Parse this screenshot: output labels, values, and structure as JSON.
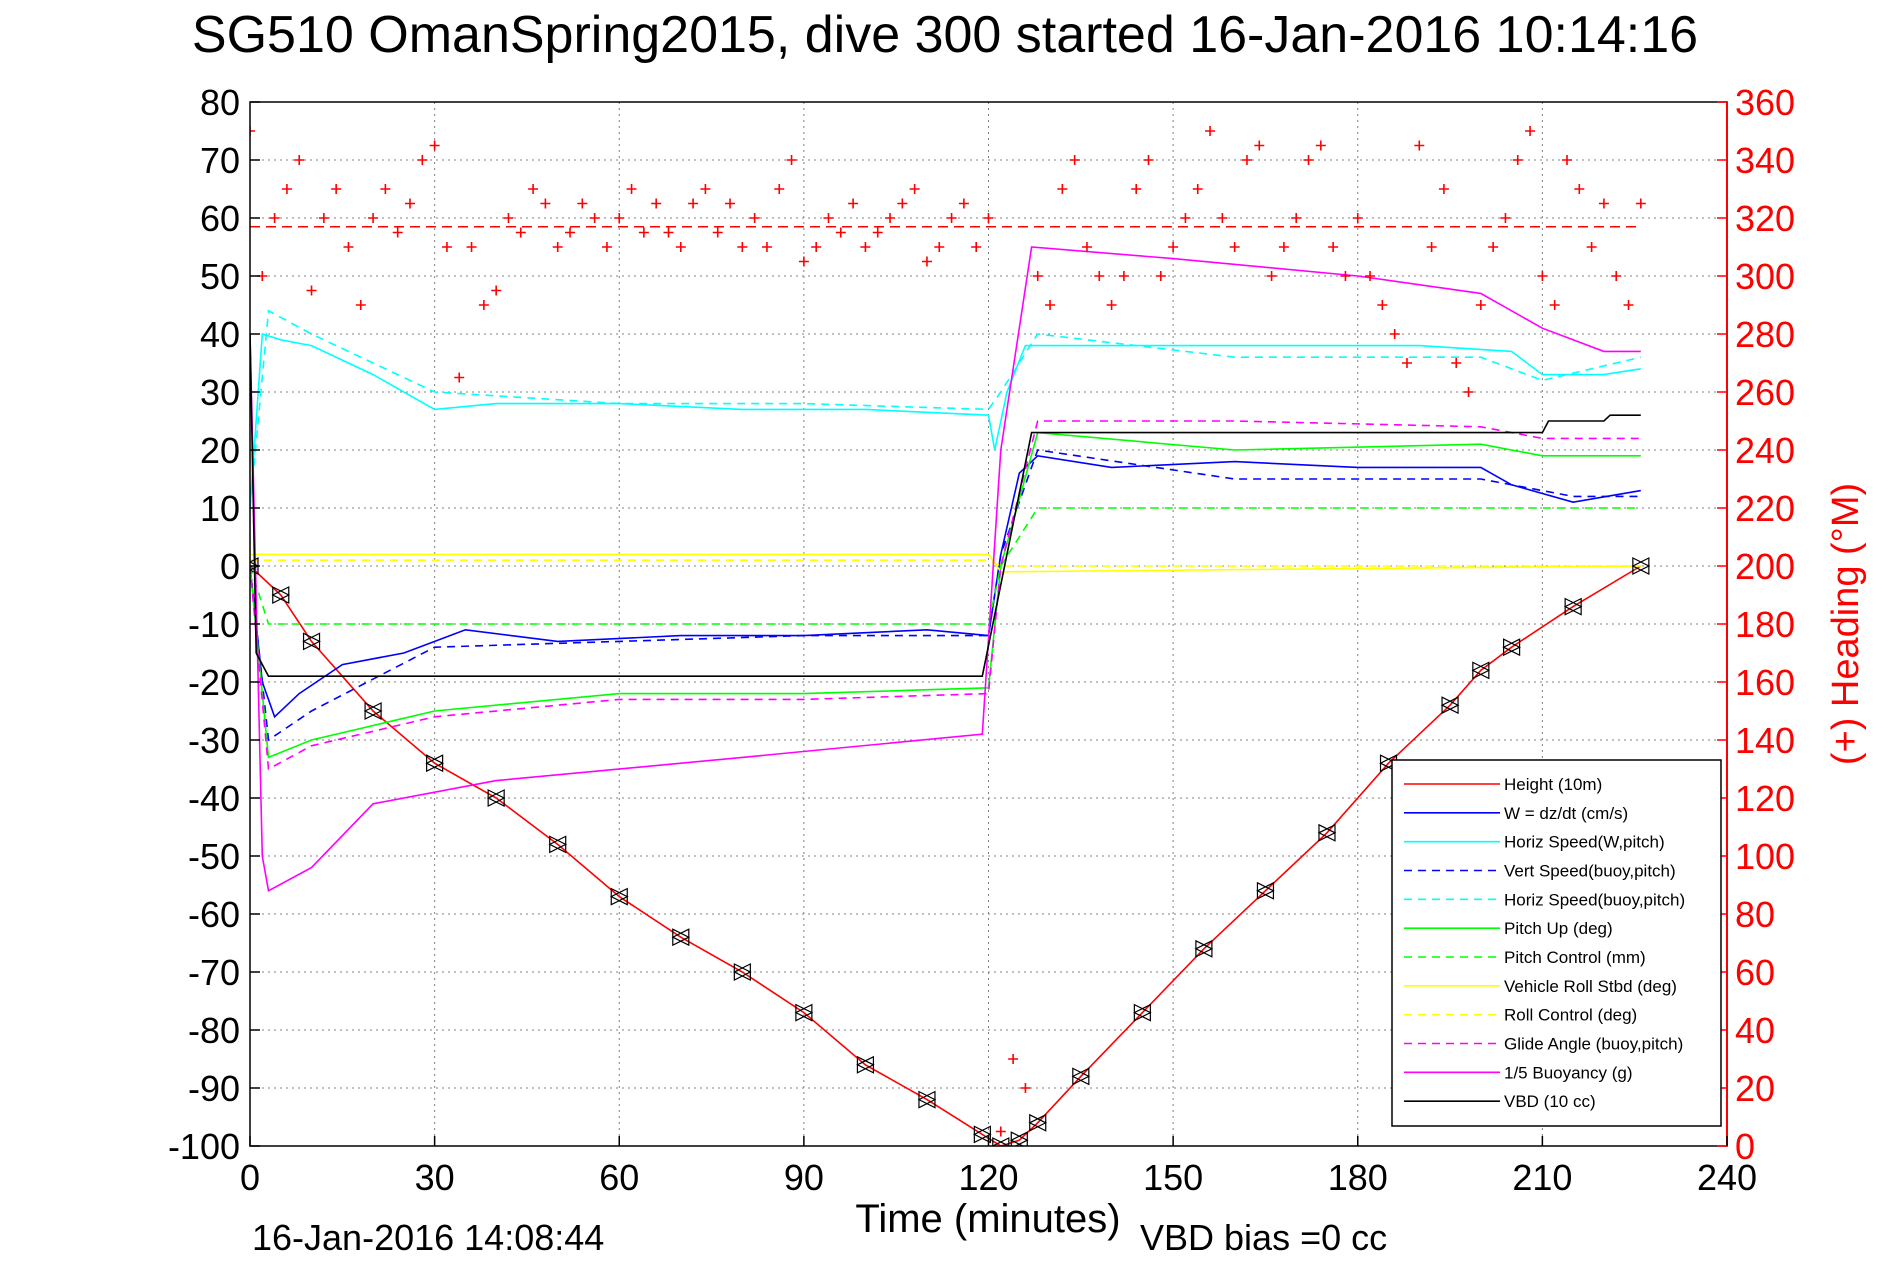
{
  "chart_data": {
    "type": "line",
    "title": "SG510 OmanSpring2015, dive 300 started 16-Jan-2016 10:14:16",
    "xlabel": "Time (minutes)",
    "ylabel": "",
    "y2label": "(+) Heading (°M)",
    "xlim": [
      0,
      240
    ],
    "ylim": [
      -100,
      80
    ],
    "y2lim": [
      0,
      360
    ],
    "x_ticks": [
      0,
      30,
      60,
      90,
      120,
      150,
      180,
      210,
      240
    ],
    "y_ticks": [
      -100,
      -90,
      -80,
      -70,
      -60,
      -50,
      -40,
      -30,
      -20,
      -10,
      0,
      10,
      20,
      30,
      40,
      50,
      60,
      70,
      80
    ],
    "y2_ticks": [
      0,
      20,
      40,
      60,
      80,
      100,
      120,
      140,
      160,
      180,
      200,
      220,
      240,
      260,
      280,
      300,
      320,
      340,
      360
    ],
    "grid": true,
    "legend_position": "bottom-right",
    "footer_left": "16-Jan-2016 14:08:44",
    "footer_right": "VBD bias =0 cc",
    "colors": {
      "red": "#ff0000",
      "blue": "#0000ff",
      "cyan": "#00ffff",
      "green": "#00ff00",
      "yellow": "#ffff00",
      "magenta": "#ff00ff",
      "black": "#000000"
    },
    "series": [
      {
        "name": "Height (10m)",
        "color": "#ff0000",
        "dash": "solid",
        "axis": "left",
        "x": [
          0,
          5,
          10,
          20,
          30,
          40,
          50,
          60,
          70,
          80,
          90,
          100,
          110,
          119,
          122,
          125,
          128,
          135,
          145,
          155,
          165,
          175,
          185,
          195,
          200,
          205,
          215,
          226
        ],
        "y": [
          0,
          -5,
          -13,
          -25,
          -34,
          -40,
          -48,
          -57,
          -64,
          -70,
          -77,
          -86,
          -92,
          -98,
          -100,
          -99,
          -96,
          -88,
          -77,
          -66,
          -56,
          -46,
          -34,
          -24,
          -18,
          -14,
          -7,
          0
        ]
      },
      {
        "name": "W = dz/dt (cm/s)",
        "color": "#0000ff",
        "dash": "solid",
        "axis": "left",
        "x": [
          0,
          2,
          4,
          8,
          15,
          25,
          35,
          50,
          70,
          90,
          110,
          120,
          122,
          125,
          128,
          140,
          160,
          180,
          200,
          205,
          215,
          226
        ],
        "y": [
          0,
          -20,
          -26,
          -22,
          -17,
          -15,
          -11,
          -13,
          -12,
          -12,
          -11,
          -12,
          2,
          16,
          19,
          17,
          18,
          17,
          17,
          14,
          11,
          13
        ]
      },
      {
        "name": "Horiz Speed(W,pitch)",
        "color": "#00ffff",
        "dash": "solid",
        "axis": "left",
        "x": [
          0,
          2,
          5,
          10,
          20,
          30,
          40,
          60,
          80,
          100,
          120,
          121,
          123,
          126,
          130,
          150,
          170,
          190,
          205,
          210,
          220,
          226
        ],
        "y": [
          10,
          40,
          39,
          38,
          33,
          27,
          28,
          28,
          27,
          27,
          26,
          20,
          30,
          38,
          38,
          38,
          38,
          38,
          37,
          33,
          33,
          34
        ]
      },
      {
        "name": "Vert Speed(buoy,pitch)",
        "color": "#0000ff",
        "dash": "dashed",
        "axis": "left",
        "x": [
          0,
          3,
          10,
          30,
          60,
          90,
          120,
          122,
          128,
          160,
          200,
          215,
          226
        ],
        "y": [
          0,
          -30,
          -25,
          -14,
          -13,
          -12,
          -12,
          2,
          20,
          15,
          15,
          12,
          12
        ]
      },
      {
        "name": "Horiz Speed(buoy,pitch)",
        "color": "#00ffff",
        "dash": "dashed",
        "axis": "left",
        "x": [
          0,
          3,
          10,
          30,
          60,
          90,
          120,
          122,
          128,
          160,
          200,
          210,
          226
        ],
        "y": [
          10,
          44,
          40,
          30,
          28,
          28,
          27,
          30,
          40,
          36,
          36,
          32,
          36
        ]
      },
      {
        "name": "Pitch Up (deg)",
        "color": "#00ff00",
        "dash": "solid",
        "axis": "left",
        "x": [
          0,
          3,
          10,
          30,
          60,
          90,
          120,
          122,
          128,
          160,
          200,
          210,
          226
        ],
        "y": [
          0,
          -33,
          -30,
          -25,
          -22,
          -22,
          -21,
          0,
          23,
          20,
          21,
          19,
          19
        ]
      },
      {
        "name": "Pitch Control (mm)",
        "color": "#00ff00",
        "dash": "dashed",
        "axis": "left",
        "x": [
          0,
          3,
          10,
          120,
          122,
          128,
          226
        ],
        "y": [
          0,
          -10,
          -10,
          -10,
          0,
          10,
          10
        ]
      },
      {
        "name": "Vehicle Roll Stbd (deg)",
        "color": "#ffff00",
        "dash": "solid",
        "axis": "left",
        "x": [
          0,
          120,
          122,
          226
        ],
        "y": [
          2,
          2,
          -1,
          0
        ]
      },
      {
        "name": "Roll Control (deg)",
        "color": "#ffff00",
        "dash": "dashed",
        "axis": "left",
        "x": [
          0,
          120,
          122,
          226
        ],
        "y": [
          1,
          1,
          0,
          0
        ]
      },
      {
        "name": "Glide Angle (buoy,pitch)",
        "color": "#ff00ff",
        "dash": "dashed",
        "axis": "left",
        "x": [
          0,
          3,
          10,
          30,
          60,
          90,
          120,
          122,
          128,
          160,
          200,
          210,
          226
        ],
        "y": [
          0,
          -35,
          -31,
          -26,
          -23,
          -23,
          -22,
          0,
          25,
          25,
          24,
          22,
          22
        ]
      },
      {
        "name": "1/5 Buoyancy (g)",
        "color": "#ff00ff",
        "dash": "solid",
        "axis": "left",
        "x": [
          0,
          2,
          3,
          10,
          20,
          40,
          80,
          119,
          122,
          127,
          150,
          180,
          200,
          210,
          220,
          226
        ],
        "y": [
          40,
          -50,
          -56,
          -52,
          -41,
          -37,
          -33,
          -29,
          20,
          55,
          53,
          50,
          47,
          41,
          37,
          37
        ]
      },
      {
        "name": "VBD (10 cc)",
        "color": "#000000",
        "dash": "solid",
        "axis": "left",
        "x": [
          0,
          1,
          3,
          119,
          127,
          210,
          211,
          220,
          221,
          226
        ],
        "y": [
          40,
          -15,
          -19,
          -19,
          23,
          23,
          25,
          25,
          26,
          26
        ]
      }
    ],
    "heading": {
      "color": "#ff0000",
      "marker": "+",
      "axis": "right",
      "x": [
        0,
        2,
        4,
        6,
        8,
        10,
        12,
        14,
        16,
        18,
        20,
        22,
        24,
        26,
        28,
        30,
        32,
        34,
        36,
        38,
        40,
        42,
        44,
        46,
        48,
        50,
        52,
        54,
        56,
        58,
        60,
        62,
        64,
        66,
        68,
        70,
        72,
        74,
        76,
        78,
        80,
        82,
        84,
        86,
        88,
        90,
        92,
        94,
        96,
        98,
        100,
        102,
        104,
        106,
        108,
        110,
        112,
        114,
        116,
        118,
        120,
        122,
        124,
        126,
        128,
        130,
        132,
        134,
        136,
        138,
        140,
        142,
        144,
        146,
        148,
        150,
        152,
        154,
        156,
        158,
        160,
        162,
        164,
        166,
        168,
        170,
        172,
        174,
        176,
        178,
        180,
        182,
        184,
        186,
        188,
        190,
        192,
        194,
        196,
        198,
        200,
        202,
        204,
        206,
        208,
        210,
        212,
        214,
        216,
        218,
        220,
        222,
        224,
        226
      ],
      "y": [
        350,
        300,
        320,
        330,
        340,
        295,
        320,
        330,
        310,
        290,
        320,
        330,
        315,
        325,
        340,
        345,
        310,
        265,
        310,
        290,
        295,
        320,
        315,
        330,
        325,
        310,
        315,
        325,
        320,
        310,
        320,
        330,
        315,
        325,
        315,
        310,
        325,
        330,
        315,
        325,
        310,
        320,
        310,
        330,
        340,
        305,
        310,
        320,
        315,
        325,
        310,
        315,
        320,
        325,
        330,
        305,
        310,
        320,
        325,
        310,
        320,
        5,
        30,
        20,
        300,
        290,
        330,
        340,
        310,
        300,
        290,
        300,
        330,
        340,
        300,
        310,
        320,
        330,
        350,
        320,
        310,
        340,
        345,
        300,
        310,
        320,
        340,
        345,
        310,
        300,
        320,
        300,
        290,
        280,
        270,
        345,
        310,
        330,
        270,
        260,
        290,
        310,
        320,
        340,
        350,
        300,
        290,
        340,
        330,
        310,
        325,
        300,
        290,
        325
      ]
    },
    "reference_heading": 317
  }
}
